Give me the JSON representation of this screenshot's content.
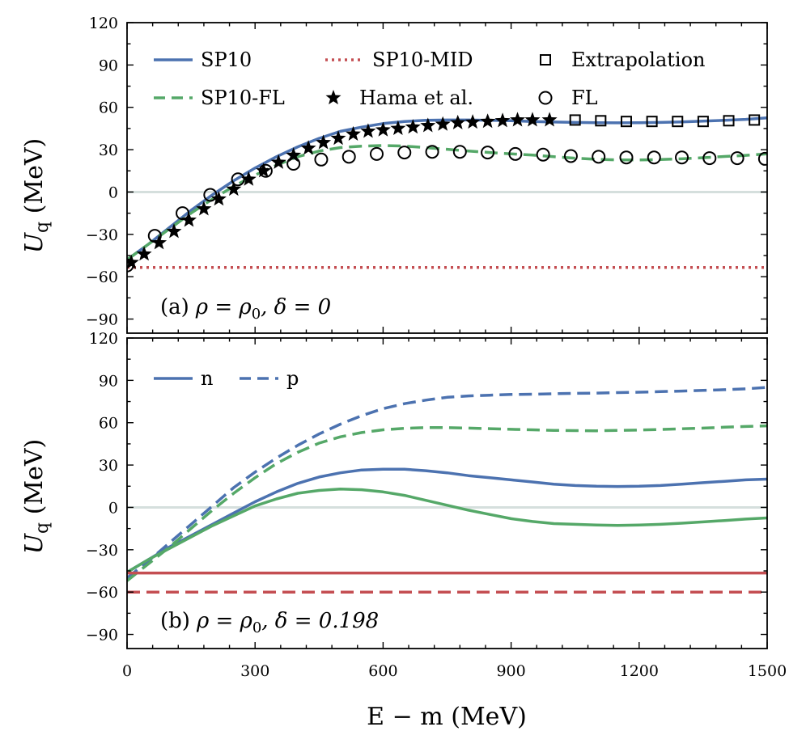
{
  "chart_data": {
    "type": "line",
    "xlabel": "E − m (MeV)",
    "x_ticks": [
      0,
      300,
      600,
      900,
      1200,
      1500
    ],
    "xlim": [
      0,
      1500
    ],
    "colors": {
      "blue": "#4c72b0",
      "green": "#55a868",
      "red": "#c44e52",
      "zero": "#d5dfdd"
    },
    "panels": [
      {
        "id": "a",
        "ylabel_main": "U",
        "ylabel_sub": "q",
        "ylabel_unit": " (MeV)",
        "ylim": [
          -100,
          120
        ],
        "y_ticks": [
          -90,
          -60,
          -30,
          0,
          30,
          60,
          90,
          120
        ],
        "annotation": {
          "prefix": "(a)",
          "math": "ρ = ρ",
          "sub": "0",
          "rest": ", δ = 0"
        },
        "legend": [
          {
            "label": "SP10",
            "style": "solid",
            "color": "#4c72b0"
          },
          {
            "label": "SP10-MID",
            "style": "dotted",
            "color": "#c44e52"
          },
          {
            "label": "Extrapolation",
            "style": "square",
            "color": "#000000"
          },
          {
            "label": "SP10-FL",
            "style": "dashed",
            "color": "#55a868"
          },
          {
            "label": "Hama et al.",
            "style": "star",
            "color": "#000000"
          },
          {
            "label": "FL",
            "style": "circle",
            "color": "#000000"
          }
        ],
        "series": [
          {
            "name": "SP10",
            "style": "solid",
            "color": "#4c72b0",
            "x": [
              0,
              50,
              100,
              150,
              200,
              250,
              300,
              350,
              400,
              450,
              500,
              550,
              600,
              650,
              700,
              750,
              800,
              850,
              900,
              950,
              1000,
              1050,
              1100,
              1150,
              1200,
              1250,
              1300,
              1350,
              1400,
              1450,
              1500
            ],
            "y": [
              -48,
              -37,
              -25,
              -13,
              -2,
              8,
              17,
              25,
              32,
              38,
              43,
              46,
              48.5,
              50,
              50.8,
              51,
              51,
              50.8,
              50.5,
              50,
              49.6,
              49.3,
              49.1,
              49,
              49.1,
              49.3,
              49.7,
              50.2,
              50.8,
              51.5,
              52.5
            ]
          },
          {
            "name": "SP10-FL",
            "style": "dashed",
            "color": "#55a868",
            "x": [
              0,
              50,
              100,
              150,
              200,
              250,
              300,
              350,
              400,
              450,
              500,
              550,
              600,
              650,
              700,
              750,
              800,
              850,
              900,
              950,
              1000,
              1050,
              1100,
              1150,
              1200,
              1250,
              1300,
              1350,
              1400,
              1450,
              1500
            ],
            "y": [
              -48,
              -37,
              -26,
              -15,
              -5,
              4,
              12,
              19,
              25,
              29,
              31.5,
              32.5,
              33,
              32.5,
              31.5,
              30.3,
              29,
              28,
              27,
              26.2,
              25,
              24,
              23.2,
              22.8,
              22.7,
              23,
              23.5,
              24.3,
              25.2,
              26,
              27
            ]
          },
          {
            "name": "SP10-MID",
            "style": "dotted",
            "color": "#c44e52",
            "x": [
              0,
              1500
            ],
            "y": [
              -53.5,
              -53.5
            ]
          },
          {
            "name": "Hama et al.",
            "style": "star",
            "color": "#000000",
            "x": [
              10,
              40,
              75,
              110,
              145,
              180,
              215,
              250,
              285,
              320,
              355,
              390,
              425,
              460,
              495,
              530,
              565,
              600,
              635,
              670,
              705,
              740,
              775,
              810,
              845,
              880,
              915,
              950,
              990
            ],
            "y": [
              -50,
              -44,
              -36,
              -28,
              -20,
              -12,
              -5,
              2,
              9,
              15,
              21,
              26,
              31,
              35,
              38,
              41,
              43,
              44,
              45,
              46,
              47,
              48,
              49,
              49.5,
              50,
              50.5,
              51,
              51,
              51
            ]
          },
          {
            "name": "Extrapolation",
            "style": "square",
            "color": "#000000",
            "x": [
              1050,
              1110,
              1170,
              1230,
              1290,
              1350,
              1410,
              1470
            ],
            "y": [
              51,
              50.5,
              50,
              50,
              50,
              50,
              50.5,
              51
            ]
          },
          {
            "name": "FL",
            "style": "circle",
            "color": "#000000",
            "x": [
              0,
              65,
              130,
              195,
              260,
              325,
              390,
              455,
              520,
              585,
              650,
              715,
              780,
              845,
              910,
              975,
              1040,
              1105,
              1170,
              1235,
              1300,
              1365,
              1430,
              1495
            ],
            "y": [
              -52,
              -31,
              -15,
              -2,
              9,
              15,
              20,
              23,
              25,
              27,
              28,
              28.5,
              28.5,
              28,
              27,
              26.5,
              25.5,
              25,
              24.5,
              24.5,
              24.5,
              24,
              24,
              23.5
            ]
          }
        ]
      },
      {
        "id": "b",
        "ylabel_main": "U",
        "ylabel_sub": "q",
        "ylabel_unit": " (MeV)",
        "ylim": [
          -100,
          120
        ],
        "y_ticks": [
          -90,
          -60,
          -30,
          0,
          30,
          60,
          90,
          120
        ],
        "annotation": {
          "prefix": "(b)",
          "math": "ρ = ρ",
          "sub": "0",
          "rest": ", δ = 0.198"
        },
        "legend": [
          {
            "label": "n",
            "style": "solid",
            "color": "#4c72b0"
          },
          {
            "label": "p",
            "style": "dashed",
            "color": "#4c72b0"
          }
        ],
        "series": [
          {
            "name": "SP10 n",
            "style": "solid",
            "color": "#4c72b0",
            "x": [
              0,
              50,
              100,
              150,
              200,
              250,
              300,
              350,
              400,
              450,
              500,
              550,
              600,
              650,
              700,
              750,
              800,
              850,
              900,
              950,
              1000,
              1050,
              1100,
              1150,
              1200,
              1250,
              1300,
              1350,
              1400,
              1450,
              1500
            ],
            "y": [
              -46,
              -37,
              -28,
              -20,
              -12,
              -4,
              4,
              11,
              17,
              21.5,
              24.5,
              26.5,
              27,
              27,
              26,
              24.5,
              22.5,
              21,
              19.5,
              18,
              16.5,
              15.5,
              15,
              14.8,
              15,
              15.5,
              16.5,
              17.5,
              18.5,
              19.5,
              20
            ]
          },
          {
            "name": "SP10 p",
            "style": "dashed",
            "color": "#4c72b0",
            "x": [
              0,
              50,
              100,
              150,
              200,
              250,
              300,
              350,
              400,
              450,
              500,
              550,
              600,
              650,
              700,
              750,
              800,
              850,
              900,
              950,
              1000,
              1050,
              1100,
              1150,
              1200,
              1250,
              1300,
              1350,
              1400,
              1450,
              1500
            ],
            "y": [
              -50,
              -38,
              -25,
              -12,
              1,
              14,
              25,
              35,
              44,
              52,
              59,
              65,
              70,
              73.5,
              76,
              78,
              79,
              79.5,
              80,
              80.2,
              80.5,
              80.8,
              81,
              81.3,
              81.6,
              82,
              82.4,
              82.9,
              83.4,
              84,
              85
            ]
          },
          {
            "name": "SP10-FL n",
            "style": "solid",
            "color": "#55a868",
            "x": [
              0,
              50,
              100,
              150,
              200,
              250,
              300,
              350,
              400,
              450,
              500,
              550,
              600,
              650,
              700,
              750,
              800,
              850,
              900,
              950,
              1000,
              1050,
              1100,
              1150,
              1200,
              1250,
              1300,
              1350,
              1400,
              1450,
              1500
            ],
            "y": [
              -46,
              -37,
              -29,
              -21,
              -13,
              -6,
              1,
              6,
              10,
              12,
              13,
              12.5,
              11,
              8.5,
              5,
              1.5,
              -2,
              -5,
              -8,
              -10,
              -11.5,
              -12,
              -12.5,
              -12.8,
              -12.5,
              -12,
              -11.2,
              -10.3,
              -9.3,
              -8.3,
              -7.5
            ]
          },
          {
            "name": "SP10-FL p",
            "style": "dashed",
            "color": "#55a868",
            "x": [
              0,
              50,
              100,
              150,
              200,
              250,
              300,
              350,
              400,
              450,
              500,
              550,
              600,
              650,
              700,
              750,
              800,
              850,
              900,
              950,
              1000,
              1050,
              1100,
              1150,
              1200,
              1250,
              1300,
              1350,
              1400,
              1450,
              1500
            ],
            "y": [
              -52,
              -40,
              -28,
              -15,
              -2,
              10,
              21,
              31,
              39,
              45.5,
              50,
              53,
              55,
              56,
              56.5,
              56.5,
              56.2,
              55.8,
              55.3,
              55,
              54.6,
              54.4,
              54.3,
              54.5,
              54.8,
              55.2,
              55.7,
              56.2,
              56.8,
              57.3,
              57.8
            ]
          },
          {
            "name": "SP10-MID n",
            "style": "solid",
            "color": "#c44e52",
            "x": [
              0,
              1500
            ],
            "y": [
              -46.5,
              -46.5
            ]
          },
          {
            "name": "SP10-MID p",
            "style": "dashed",
            "color": "#c44e52",
            "x": [
              0,
              1500
            ],
            "y": [
              -60,
              -60
            ]
          }
        ]
      }
    ]
  }
}
